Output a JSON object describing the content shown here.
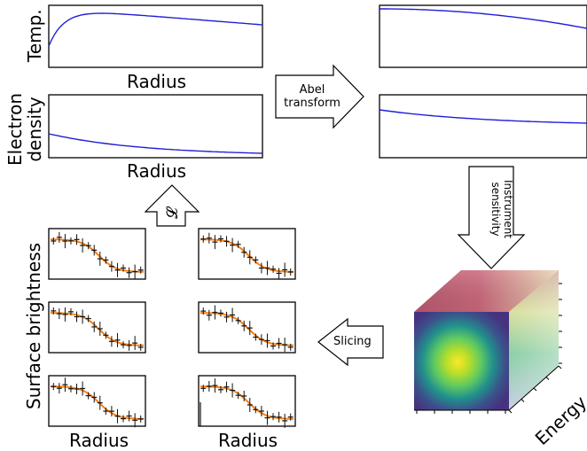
{
  "labels": {
    "temp": "Temp.",
    "electron_density": [
      "Electron",
      "density"
    ],
    "radius": "Radius",
    "surface_brightness": "Surface brightness",
    "energy": "Energy",
    "abel_transform": [
      "Abel",
      "transform"
    ],
    "instrument_sensitivity": [
      "Instrument",
      "sensitivity"
    ],
    "slicing": "Slicing",
    "likelihood_symbol": "𝓛"
  },
  "colors": {
    "profile_line": "#1f1fd6",
    "model_line": "#ff7f0e",
    "data_points": "#111111",
    "axis": "#000000"
  },
  "arrows": [
    "right-arrow",
    "down-arrow",
    "left-arrow",
    "up-arrow"
  ],
  "cube": {
    "icon": "data-cube",
    "front_face_colormap": "viridis",
    "side_faces_colormap": "magma-like"
  }
}
